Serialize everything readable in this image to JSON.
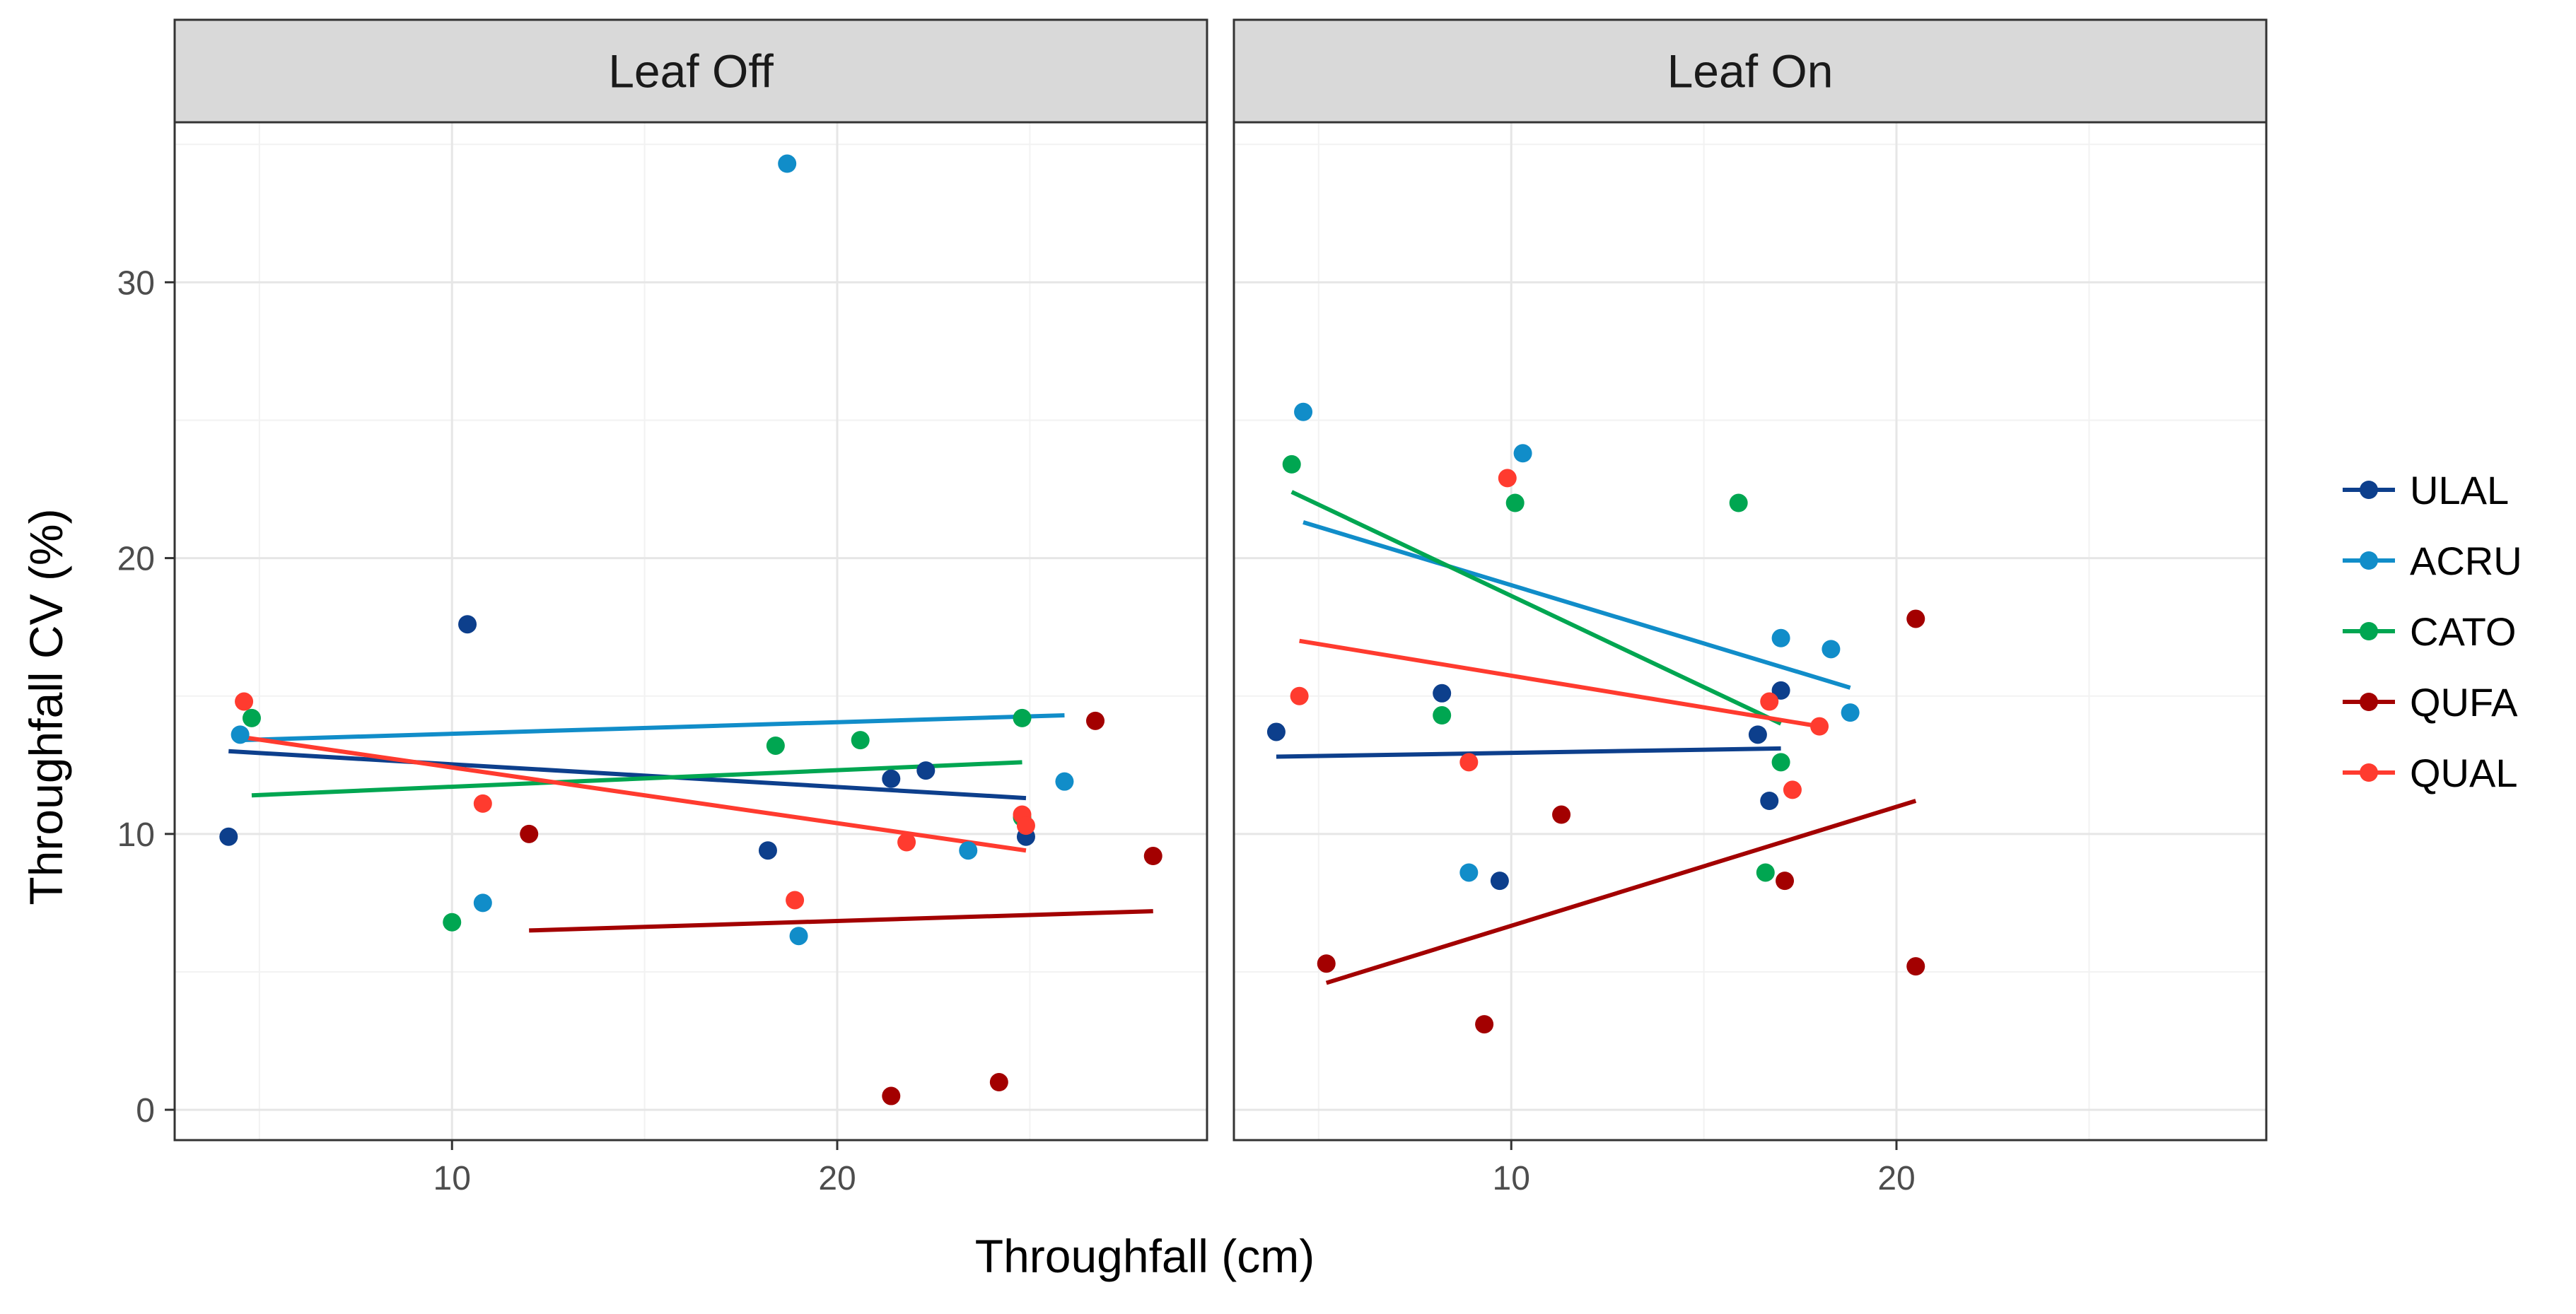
{
  "chart_data": {
    "type": "scatter",
    "title": "",
    "xlabel": "Throughfall (cm)",
    "ylabel": "Throughfall CV (%)",
    "xlim": [
      2.8,
      29.6
    ],
    "ylim": [
      -1.1,
      35.8
    ],
    "x_ticks": [
      10,
      20
    ],
    "y_ticks": [
      0,
      10,
      20,
      30
    ],
    "grid": true,
    "legend_position": "right",
    "legend": [
      {
        "name": "ULAL",
        "color": "#0d3f8c"
      },
      {
        "name": "ACRU",
        "color": "#118dc9"
      },
      {
        "name": "CATO",
        "color": "#00a651"
      },
      {
        "name": "QUFA",
        "color": "#a30000"
      },
      {
        "name": "QUAL",
        "color": "#ff3b2f"
      }
    ],
    "panels": [
      {
        "label": "Leaf Off",
        "series": [
          {
            "name": "ULAL",
            "points": [
              [
                4.2,
                9.9
              ],
              [
                10.4,
                17.6
              ],
              [
                18.2,
                9.4
              ],
              [
                21.4,
                12.0
              ],
              [
                22.3,
                12.3
              ],
              [
                24.9,
                9.9
              ]
            ],
            "fit": [
              [
                4.2,
                13.0
              ],
              [
                24.9,
                11.3
              ]
            ]
          },
          {
            "name": "ACRU",
            "points": [
              [
                4.5,
                13.6
              ],
              [
                10.8,
                7.5
              ],
              [
                18.7,
                34.3
              ],
              [
                19.0,
                6.3
              ],
              [
                23.4,
                9.4
              ],
              [
                25.9,
                11.9
              ]
            ],
            "fit": [
              [
                4.5,
                13.4
              ],
              [
                25.9,
                14.3
              ]
            ]
          },
          {
            "name": "CATO",
            "points": [
              [
                4.8,
                14.2
              ],
              [
                10.0,
                6.8
              ],
              [
                18.4,
                13.2
              ],
              [
                20.6,
                13.4
              ],
              [
                24.8,
                10.6
              ],
              [
                24.8,
                14.2
              ]
            ],
            "fit": [
              [
                4.8,
                11.4
              ],
              [
                24.8,
                12.6
              ]
            ]
          },
          {
            "name": "QUFA",
            "points": [
              [
                12.0,
                10.0
              ],
              [
                21.4,
                0.5
              ],
              [
                24.2,
                1.0
              ],
              [
                26.7,
                14.1
              ],
              [
                28.2,
                9.2
              ]
            ],
            "fit": [
              [
                12.0,
                6.5
              ],
              [
                28.2,
                7.2
              ]
            ]
          },
          {
            "name": "QUAL",
            "points": [
              [
                4.6,
                14.8
              ],
              [
                10.8,
                11.1
              ],
              [
                18.9,
                7.6
              ],
              [
                21.8,
                9.7
              ],
              [
                24.8,
                10.7
              ],
              [
                24.9,
                10.3
              ]
            ],
            "fit": [
              [
                4.6,
                13.5
              ],
              [
                24.9,
                9.4
              ]
            ]
          }
        ]
      },
      {
        "label": "Leaf On",
        "series": [
          {
            "name": "ULAL",
            "points": [
              [
                3.9,
                13.7
              ],
              [
                8.2,
                15.1
              ],
              [
                9.7,
                8.3
              ],
              [
                16.4,
                13.6
              ],
              [
                16.7,
                11.2
              ],
              [
                17.0,
                15.2
              ]
            ],
            "fit": [
              [
                3.9,
                12.8
              ],
              [
                17.0,
                13.1
              ]
            ]
          },
          {
            "name": "ACRU",
            "points": [
              [
                4.6,
                25.3
              ],
              [
                8.9,
                8.6
              ],
              [
                10.3,
                23.8
              ],
              [
                17.0,
                17.1
              ],
              [
                18.3,
                16.7
              ],
              [
                18.8,
                14.4
              ]
            ],
            "fit": [
              [
                4.6,
                21.3
              ],
              [
                18.8,
                15.3
              ]
            ]
          },
          {
            "name": "CATO",
            "points": [
              [
                4.3,
                23.4
              ],
              [
                8.2,
                14.3
              ],
              [
                10.1,
                22.0
              ],
              [
                15.9,
                22.0
              ],
              [
                16.6,
                8.6
              ],
              [
                17.0,
                12.6
              ]
            ],
            "fit": [
              [
                4.3,
                22.4
              ],
              [
                17.0,
                14.0
              ]
            ]
          },
          {
            "name": "QUFA",
            "points": [
              [
                5.2,
                5.3
              ],
              [
                9.3,
                3.1
              ],
              [
                11.3,
                10.7
              ],
              [
                17.1,
                8.3
              ],
              [
                20.5,
                17.8
              ],
              [
                20.5,
                5.2
              ]
            ],
            "fit": [
              [
                5.2,
                4.6
              ],
              [
                20.5,
                11.2
              ]
            ]
          },
          {
            "name": "QUAL",
            "points": [
              [
                4.5,
                15.0
              ],
              [
                8.9,
                12.6
              ],
              [
                9.9,
                22.9
              ],
              [
                16.7,
                14.8
              ],
              [
                17.3,
                11.6
              ],
              [
                18.0,
                13.9
              ]
            ],
            "fit": [
              [
                4.5,
                17.0
              ],
              [
                18.0,
                13.9
              ]
            ]
          }
        ]
      }
    ]
  }
}
